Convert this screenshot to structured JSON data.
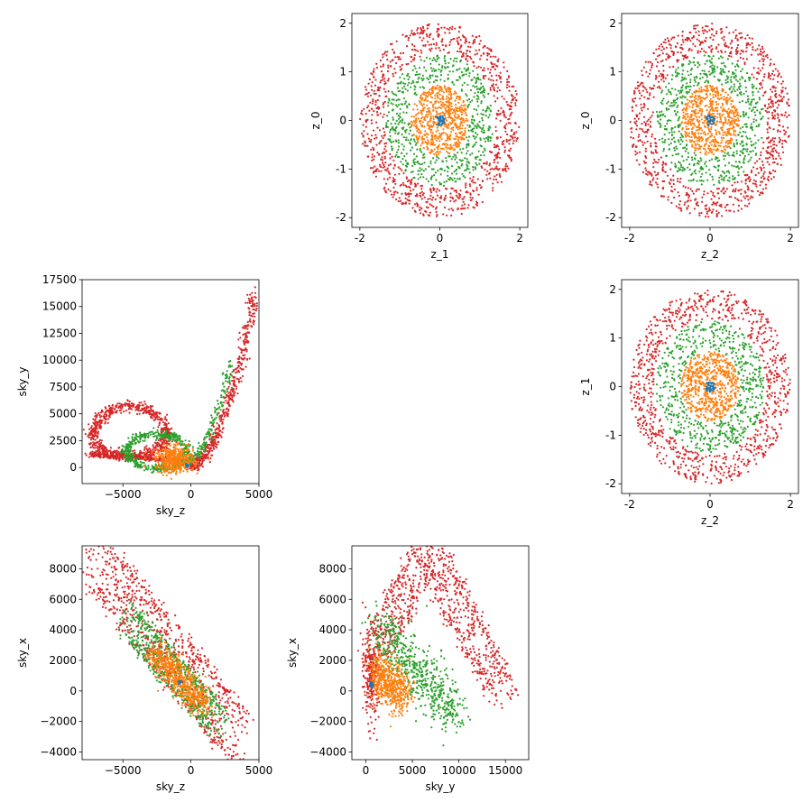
{
  "figure": {
    "colors": {
      "shell_4": "#d62728",
      "shell_3": "#2ca02c",
      "shell_2": "#ff7f0e",
      "shell_1": "#1f77b4"
    }
  },
  "chart_data": [
    {
      "type": "scatter",
      "panel": "z_1 vs z_0",
      "xlabel": "z_1",
      "ylabel": "z_0",
      "xlim": [
        -2.2,
        2.2
      ],
      "ylim": [
        -2.2,
        2.2
      ],
      "xticks": [
        -2,
        0,
        2
      ],
      "yticks": [
        -2,
        -1,
        0,
        1,
        2
      ],
      "shells": [
        {
          "color": "#d62728",
          "r_min": 1.4,
          "r_max": 2.0,
          "points": 900
        },
        {
          "color": "#2ca02c",
          "r_min": 0.75,
          "r_max": 1.35,
          "points": 600
        },
        {
          "color": "#ff7f0e",
          "r_min": 0.0,
          "r_max": 0.72,
          "points": 600
        },
        {
          "color": "#1f77b4",
          "r_min": 0.0,
          "r_max": 0.12,
          "points": 40
        }
      ]
    },
    {
      "type": "scatter",
      "panel": "z_2 vs z_0",
      "xlabel": "z_2",
      "ylabel": "z_0",
      "xlim": [
        -2.2,
        2.2
      ],
      "ylim": [
        -2.2,
        2.2
      ],
      "xticks": [
        -2,
        0,
        2
      ],
      "yticks": [
        -2,
        -1,
        0,
        1,
        2
      ],
      "shells": [
        {
          "color": "#d62728",
          "r_min": 1.4,
          "r_max": 2.0,
          "points": 900
        },
        {
          "color": "#2ca02c",
          "r_min": 0.75,
          "r_max": 1.35,
          "points": 600
        },
        {
          "color": "#ff7f0e",
          "r_min": 0.0,
          "r_max": 0.72,
          "points": 600
        },
        {
          "color": "#1f77b4",
          "r_min": 0.0,
          "r_max": 0.12,
          "points": 40
        }
      ]
    },
    {
      "type": "scatter",
      "panel": "sky_z vs sky_y",
      "xlabel": "sky_z",
      "ylabel": "sky_y",
      "xlim": [
        -8000,
        5000
      ],
      "ylim": [
        -1500,
        17500
      ],
      "xticks": [
        -5000,
        0,
        5000
      ],
      "yticks": [
        0,
        2500,
        5000,
        7500,
        10000,
        12500,
        15000,
        17500
      ],
      "xtick_labels": [
        "−5000",
        "0",
        "5000"
      ],
      "ytick_labels": [
        "0",
        "2500",
        "5000",
        "7500",
        "10000",
        "12500",
        "15000",
        "17500"
      ]
    },
    {
      "type": "scatter",
      "panel": "z_2 vs z_1",
      "xlabel": "z_2",
      "ylabel": "z_1",
      "xlim": [
        -2.2,
        2.2
      ],
      "ylim": [
        -2.2,
        2.2
      ],
      "xticks": [
        -2,
        0,
        2
      ],
      "yticks": [
        -2,
        -1,
        0,
        1,
        2
      ],
      "shells": [
        {
          "color": "#d62728",
          "r_min": 1.4,
          "r_max": 2.0,
          "points": 900
        },
        {
          "color": "#2ca02c",
          "r_min": 0.75,
          "r_max": 1.35,
          "points": 600
        },
        {
          "color": "#ff7f0e",
          "r_min": 0.0,
          "r_max": 0.72,
          "points": 600
        },
        {
          "color": "#1f77b4",
          "r_min": 0.0,
          "r_max": 0.12,
          "points": 40
        }
      ]
    },
    {
      "type": "scatter",
      "panel": "sky_z vs sky_x",
      "xlabel": "sky_z",
      "ylabel": "sky_x",
      "xlim": [
        -8000,
        5000
      ],
      "ylim": [
        -4500,
        9500
      ],
      "xticks": [
        -5000,
        0,
        5000
      ],
      "yticks": [
        -4000,
        -2000,
        0,
        2000,
        4000,
        6000,
        8000
      ],
      "xtick_labels": [
        "−5000",
        "0",
        "5000"
      ],
      "ytick_labels": [
        "−4000",
        "−2000",
        "0",
        "2000",
        "4000",
        "6000",
        "8000"
      ]
    },
    {
      "type": "scatter",
      "panel": "sky_y vs sky_x",
      "xlabel": "sky_y",
      "ylabel": "sky_x",
      "xlim": [
        -1500,
        17500
      ],
      "ylim": [
        -4500,
        9500
      ],
      "xticks": [
        0,
        5000,
        10000,
        15000
      ],
      "yticks": [
        -4000,
        -2000,
        0,
        2000,
        4000,
        6000,
        8000
      ],
      "ytick_labels": [
        "−4000",
        "−2000",
        "0",
        "2000",
        "4000",
        "6000",
        "8000"
      ]
    }
  ]
}
